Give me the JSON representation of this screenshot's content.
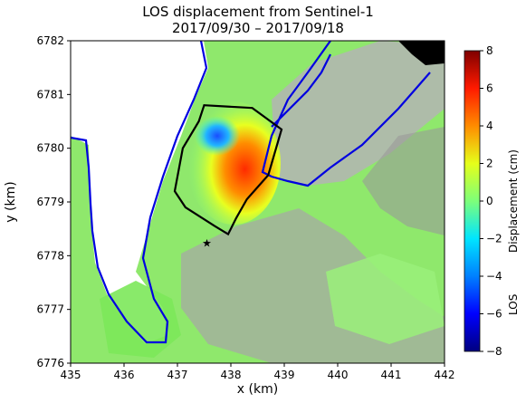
{
  "chart_data": {
    "type": "heatmap",
    "title": "LOS displacement from Sentinel-1",
    "subtitle": "2017/09/30 – 2017/09/18",
    "xlabel": "x (km)",
    "ylabel": "y (km)",
    "xlim": [
      435,
      442
    ],
    "ylim": [
      6776,
      6782
    ],
    "xticks": [
      "435",
      "436",
      "437",
      "438",
      "439",
      "440",
      "441",
      "442"
    ],
    "yticks": [
      "6776",
      "6777",
      "6778",
      "6779",
      "6780",
      "6781",
      "6782"
    ],
    "colorbar": {
      "label_left": "LOS",
      "label_right": "Displacement (cm)",
      "range": [
        -8,
        8
      ],
      "ticks": [
        "−8",
        "−6",
        "−4",
        "−2",
        "0",
        "2",
        "4",
        "6",
        "8"
      ],
      "colormap": "jet"
    },
    "grid": false,
    "star_marker": {
      "x": 437.55,
      "y": 6778.25
    },
    "landslide_outline": {
      "x": [
        437.5,
        438.4,
        438.95,
        438.7,
        438.3,
        438.1,
        437.95,
        437.7,
        437.15,
        436.95,
        437.1,
        437.4,
        437.5
      ],
      "y": [
        6780.8,
        6780.75,
        6780.35,
        6779.5,
        6779.05,
        6778.7,
        6778.4,
        6778.55,
        6778.9,
        6779.2,
        6780.0,
        6780.5,
        6780.8
      ]
    }
  }
}
